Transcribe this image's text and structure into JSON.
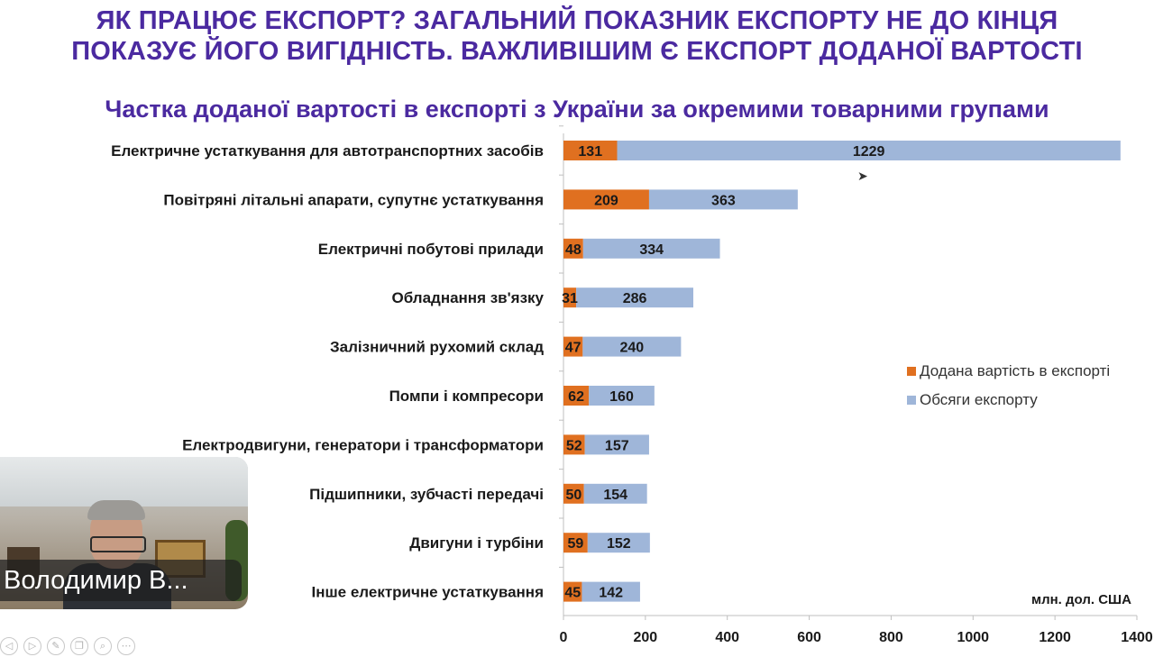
{
  "header": {
    "line1": "ЯК ПРАЦЮЄ ЕКСПОРТ? ЗАГАЛЬНИЙ ПОКАЗНИК ЕКСПОРТУ НЕ ДО КІНЦЯ",
    "line2": "ПОКАЗУЄ ЙОГО ВИГІДНІСТЬ. ВАЖЛИВІШИМ Є ЕКСПОРТ ДОДАНОЇ ВАРТОСТІ"
  },
  "chart_data": {
    "type": "bar",
    "orientation": "horizontal",
    "stacked": true,
    "title": "Частка доданої вартості в експорті з України за окремими товарними групами",
    "categories": [
      "Електричне устаткування для автотранспортних засобів",
      "Повітряні літальні апарати, супутнє устаткування",
      "Електричні побутові прилади",
      "Обладнання зв'язку",
      "Залізничний рухомий склад",
      "Помпи і компресори",
      "Електродвигуни, генератори і трансформатори",
      "Підшипники, зубчасті передачі",
      "Двигуни і турбіни",
      "Інше електричне устаткування"
    ],
    "series": [
      {
        "name": "Додана вартість в експорті",
        "color": "#e07020",
        "values": [
          131,
          209,
          48,
          31,
          47,
          62,
          52,
          50,
          59,
          45
        ]
      },
      {
        "name": "Обсяги експорту",
        "color": "#9fb6d9",
        "values": [
          1229,
          363,
          334,
          286,
          240,
          160,
          157,
          154,
          152,
          142
        ]
      }
    ],
    "xlim": [
      0,
      1400
    ],
    "xticks": [
      0,
      200,
      400,
      600,
      800,
      1000,
      1200,
      1400
    ],
    "unit_label": "млн. дол. США",
    "legend_position": "right"
  },
  "webcam": {
    "participant_name": "Володимир В..."
  },
  "toolbar": {
    "icons": [
      "prev-icon",
      "play-icon",
      "pen-icon",
      "copy-icon",
      "zoom-icon",
      "more-icon"
    ],
    "glyphs": [
      "◁",
      "▷",
      "✎",
      "❐",
      "⌕",
      "⋯"
    ]
  }
}
